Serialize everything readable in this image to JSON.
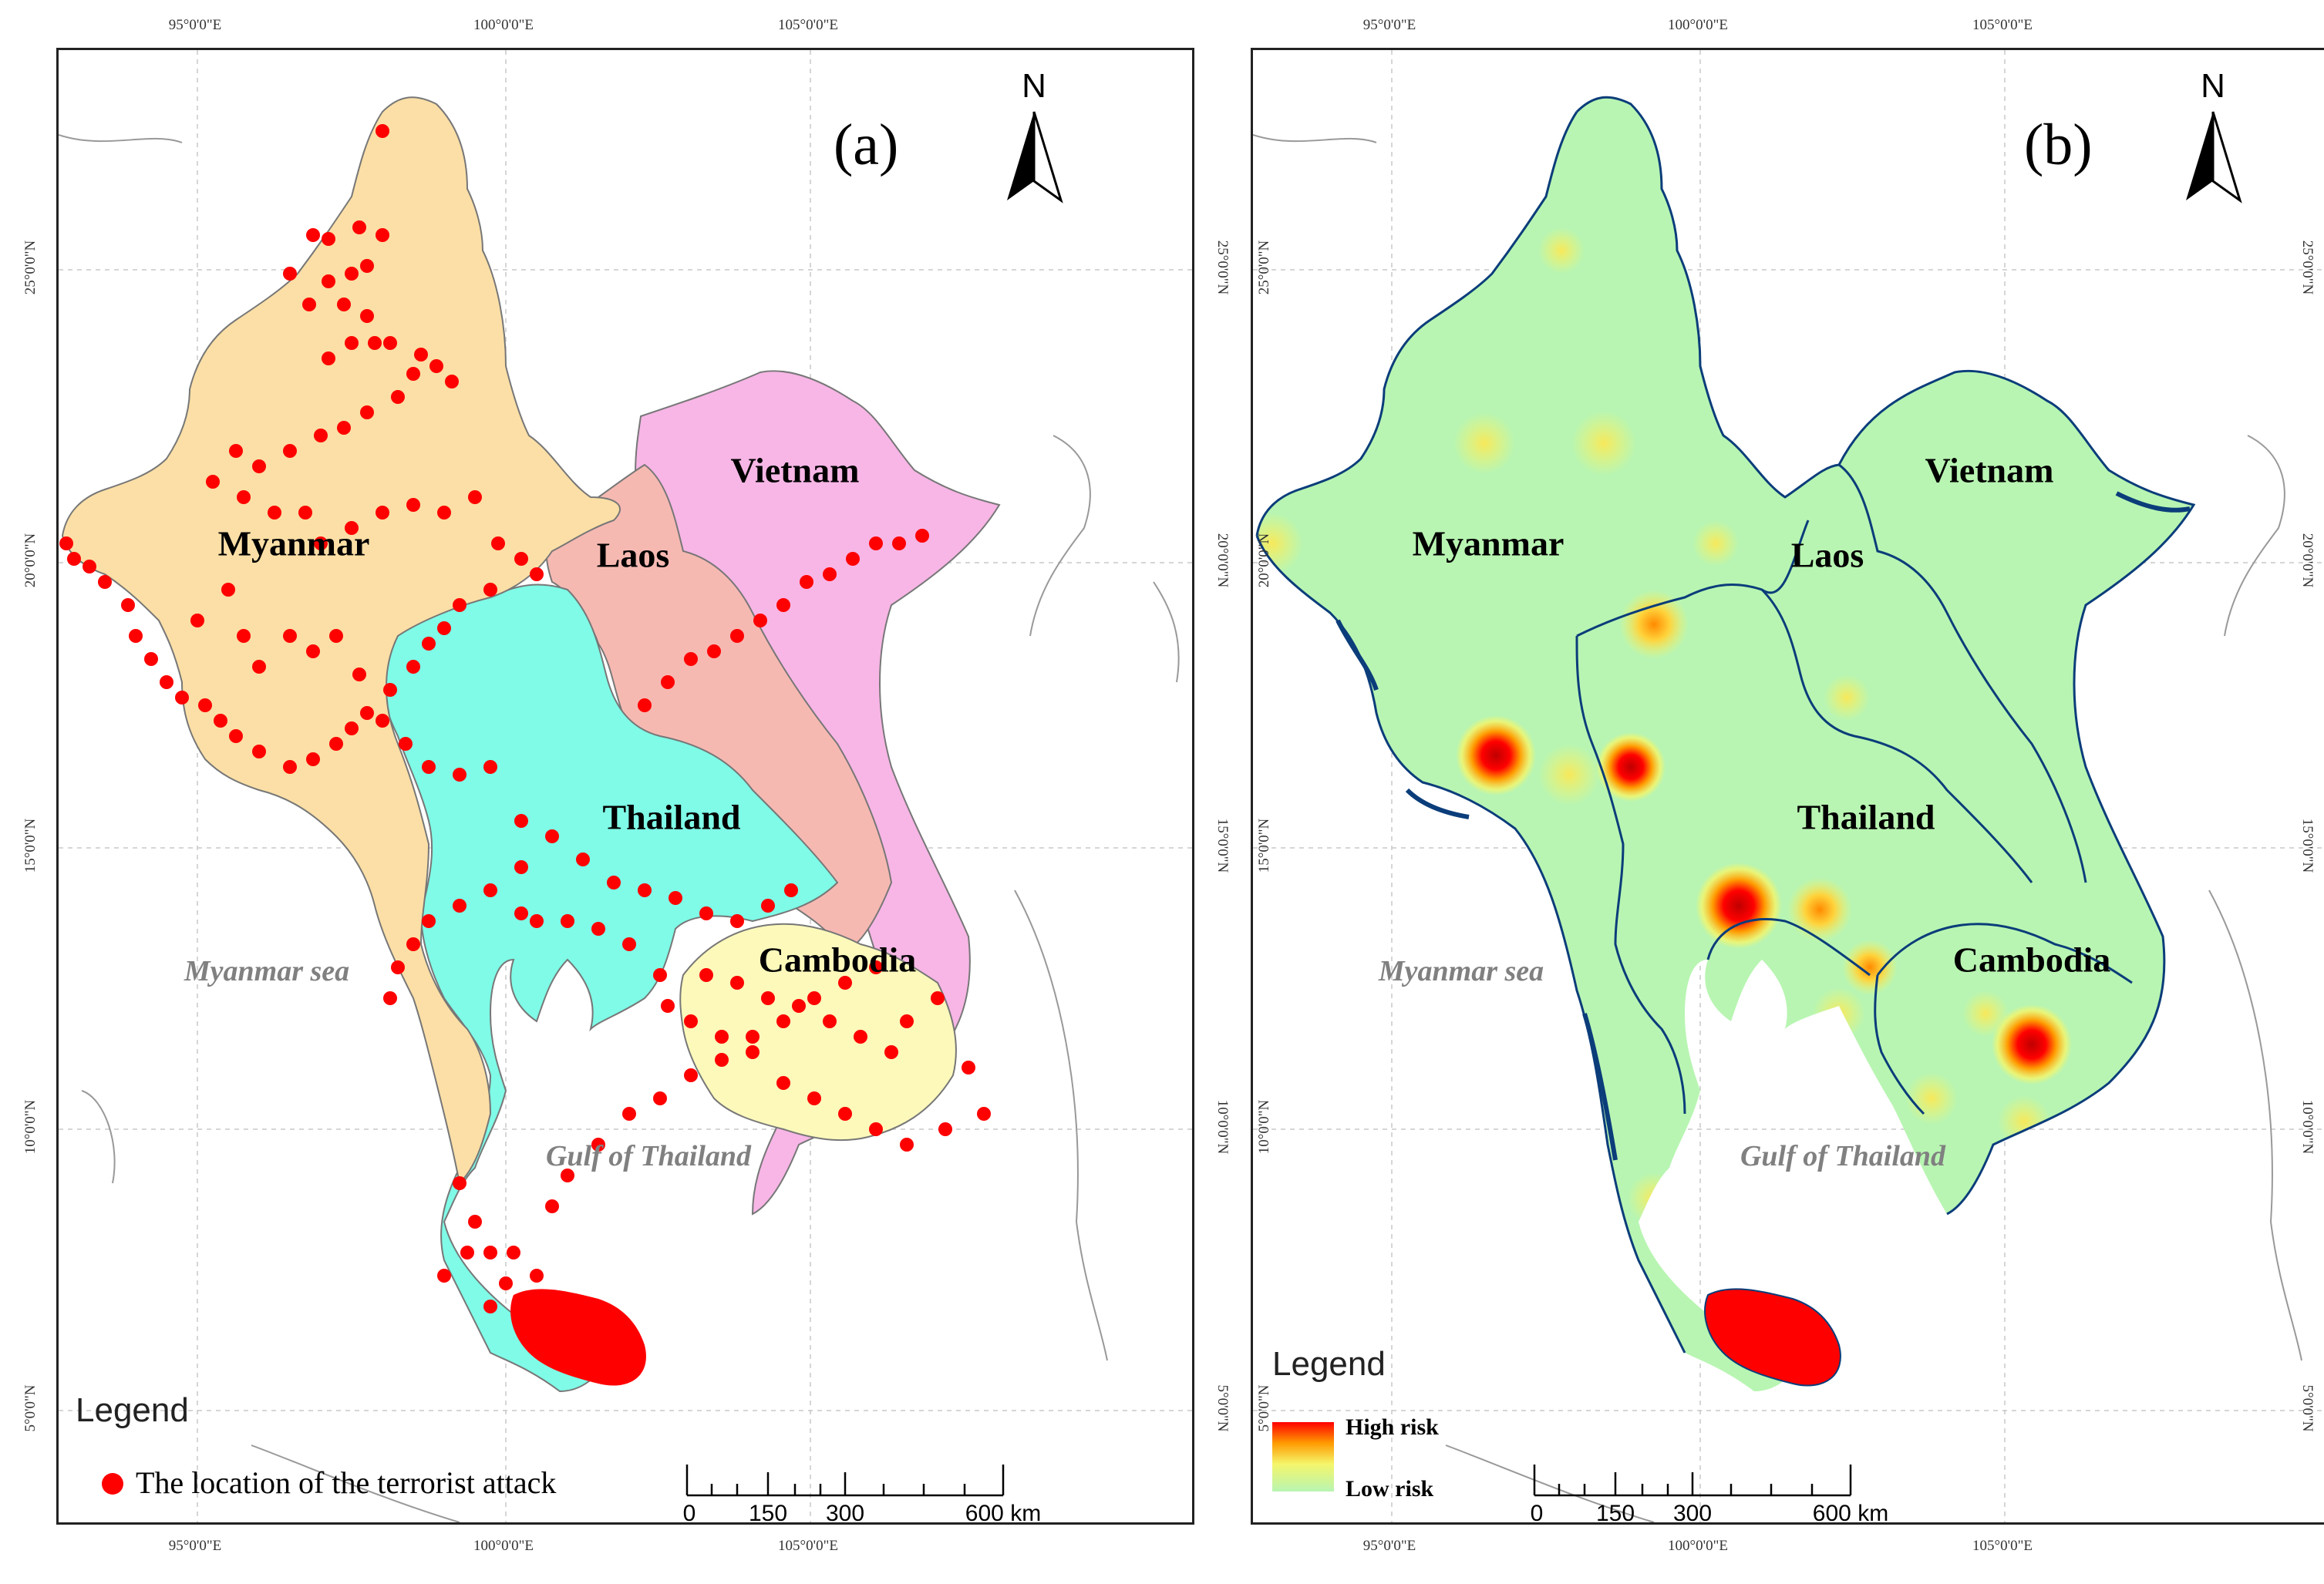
{
  "coordinates": {
    "longitude": [
      "95°0'0\"E",
      "100°0'0\"E",
      "105°0'0\"E"
    ],
    "latitude": [
      "25°0'0\"N",
      "20°0'0\"N",
      "15°0'0\"N",
      "10°0'0\"N",
      "5°0'0\"N"
    ]
  },
  "countries": [
    "Myanmar",
    "Laos",
    "Vietnam",
    "Thailand",
    "Cambodia"
  ],
  "seas": [
    "Myanmar sea",
    "Gulf of Thailand"
  ],
  "north_label": "N",
  "scale": {
    "ticks": [
      "0",
      "150",
      "300",
      "600 km"
    ]
  },
  "panel_a": {
    "letter": "(a)",
    "legend_title": "Legend",
    "legend_item": "The location of the terrorist attack",
    "colors": {
      "Myanmar": "#fbdfa6",
      "Laos": "#f6b9b2",
      "Vietnam": "#f7b6e6",
      "Thailand": "#7ffbe7",
      "Cambodia": "#fcf9bb",
      "attack": "#ff0000"
    }
  },
  "panel_b": {
    "letter": "(b)",
    "legend_title": "Legend",
    "legend_high": "High risk",
    "legend_low": "Low risk",
    "colors": {
      "base": "#b8f5b2",
      "border": "#0b3d7a",
      "high": "#ff0000",
      "low": "#b8f5b2"
    }
  }
}
